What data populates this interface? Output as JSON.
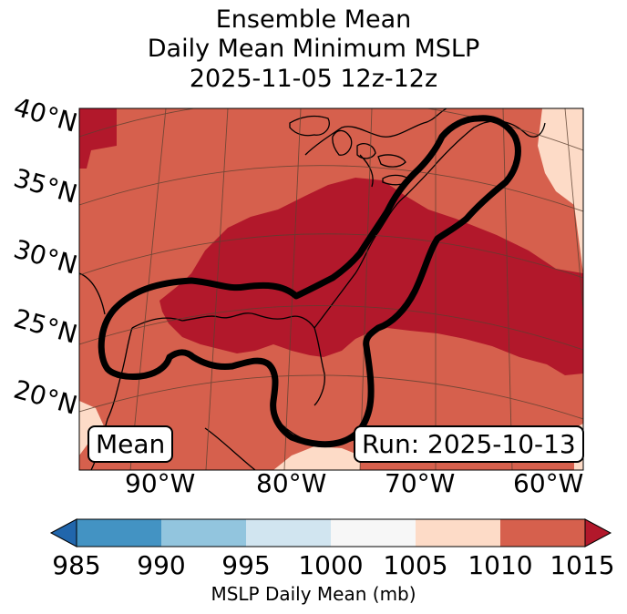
{
  "title": {
    "line1": "Ensemble Mean",
    "line2": "Daily Mean Minimum MSLP",
    "line3": "2025-11-05 12z-12z"
  },
  "map": {
    "lat_labels": [
      "40°N",
      "35°N",
      "30°N",
      "25°N",
      "20°N"
    ],
    "lon_labels": [
      "90°W",
      "80°W",
      "70°W",
      "60°W"
    ],
    "mean_box": "Mean",
    "run_box": "Run: 2025-10-13",
    "fill_colors": {
      "band_1005_1010": "#fddbc7",
      "band_1010_1015": "#d6604d",
      "band_above_1015": "#b2182b",
      "outline": "#000000",
      "coast": "#000000",
      "grid": "#5a4030"
    }
  },
  "colorbar": {
    "label": "MSLP Daily Mean (mb)",
    "ticks": [
      "985",
      "990",
      "995",
      "1000",
      "1005",
      "1010",
      "1015"
    ],
    "colors": [
      "#2166ac",
      "#4393c3",
      "#92c5de",
      "#d1e5f0",
      "#f7f7f7",
      "#fddbc7",
      "#d6604d",
      "#b2182b"
    ]
  }
}
